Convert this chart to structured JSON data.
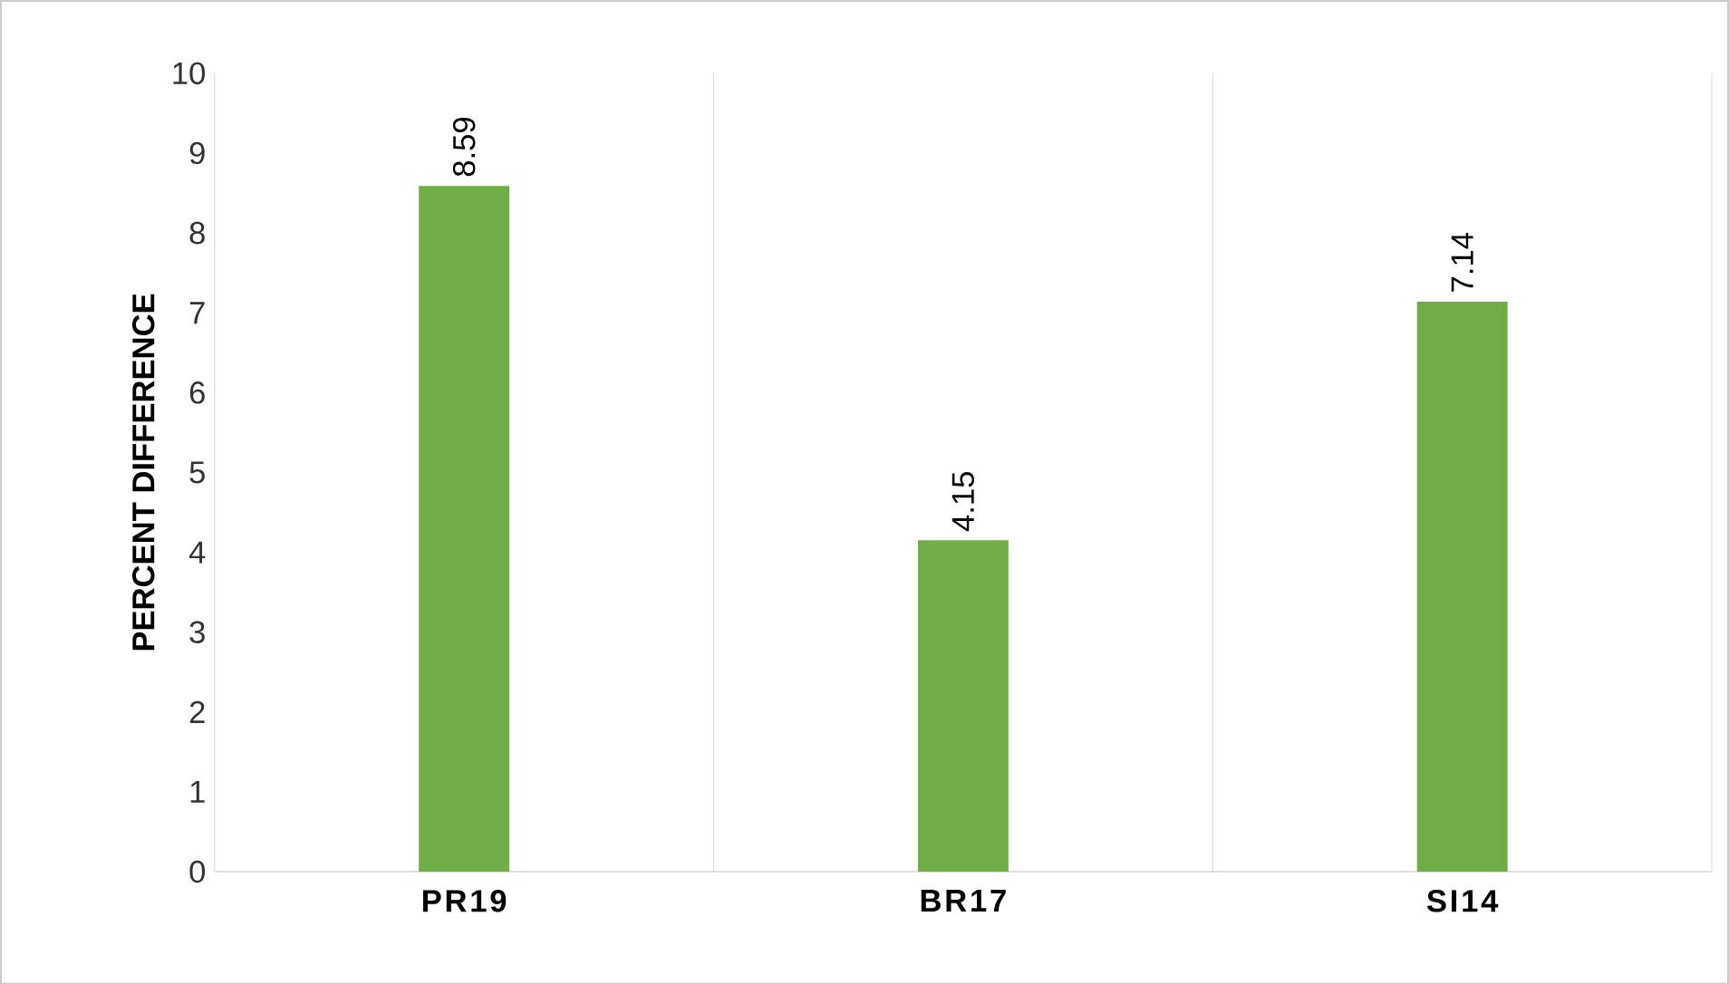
{
  "chart_data": {
    "type": "bar",
    "ylabel": "PERCENT DIFFERENCE",
    "categories": [
      "PR19",
      "BR17",
      "SI14"
    ],
    "values": [
      8.59,
      4.15,
      7.14
    ],
    "color": "#70ad47",
    "ylim": [
      0,
      10
    ],
    "yticks": [
      0,
      1,
      2,
      3,
      4,
      5,
      6,
      7,
      8,
      9,
      10
    ],
    "grid": "x",
    "data_labels": true
  }
}
